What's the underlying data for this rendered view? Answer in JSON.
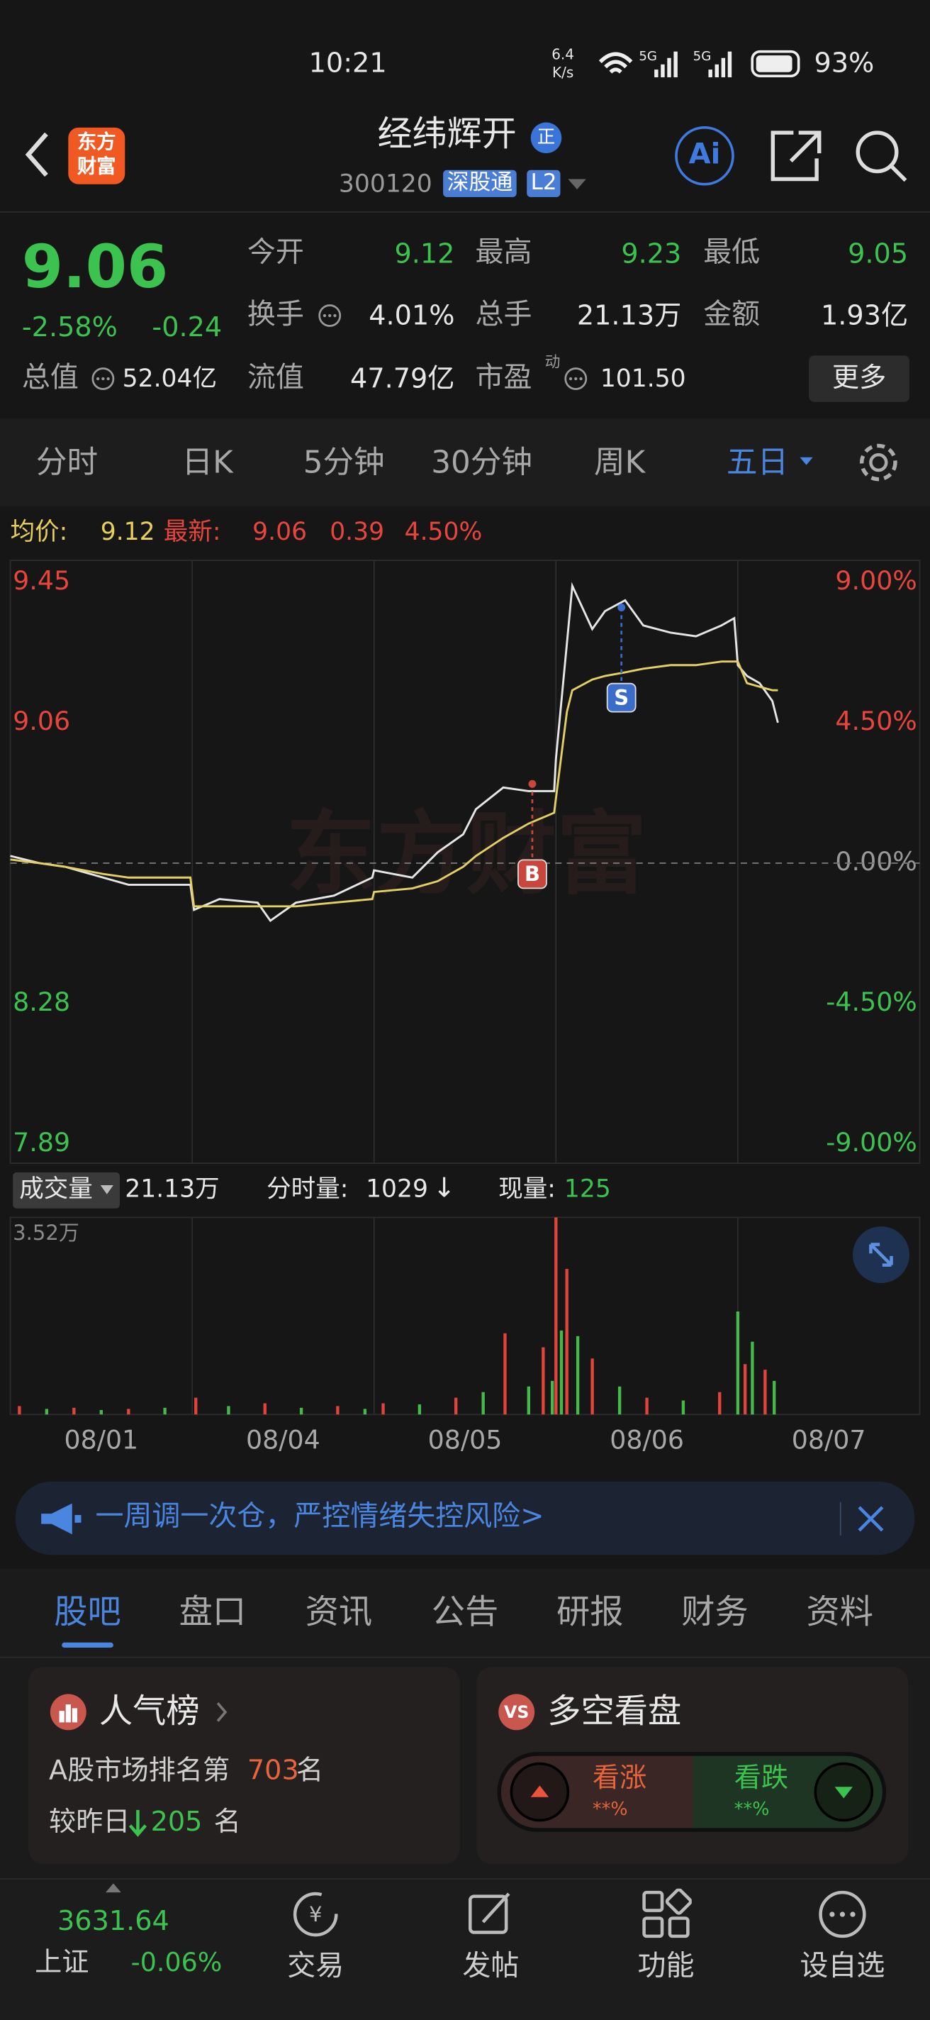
{
  "status": {
    "time": "10:21",
    "speed": "6.4",
    "speed_unit": "K/s",
    "battery": "93%"
  },
  "header": {
    "logo": [
      "东方",
      "财富"
    ],
    "title": "经纬辉开",
    "badge": "正",
    "code": "300120",
    "tags": [
      "深股通",
      "L2"
    ],
    "ai": "Ai"
  },
  "quote": {
    "price": "9.06",
    "change_pct": "-2.58%",
    "change": "-0.24",
    "fields": [
      {
        "label": "今开",
        "value": "9.12"
      },
      {
        "label": "最高",
        "value": "9.23"
      },
      {
        "label": "最低",
        "value": "9.05"
      },
      {
        "label": "换手",
        "value": "4.01%"
      },
      {
        "label": "总手",
        "value": "21.13万"
      },
      {
        "label": "金额",
        "value": "1.93亿"
      },
      {
        "label": "总值",
        "value": "52.04亿"
      },
      {
        "label": "流值",
        "value": "47.79亿"
      },
      {
        "label": "市盈",
        "value": "101.50",
        "sup": "动"
      }
    ],
    "more": "更多"
  },
  "tabs": [
    "分时",
    "日K",
    "5分钟",
    "30分钟",
    "周K",
    "五日"
  ],
  "chart_info": {
    "avg_label": "均价:",
    "avg": "9.12",
    "last_label": "最新:",
    "last": "9.06",
    "change": "0.39",
    "change_pct": "4.50%"
  },
  "chart_data": {
    "type": "line",
    "watermark": "东方财富",
    "xlim": [
      0,
      5
    ],
    "xticks": [
      {
        "value": 0.5,
        "label": "08/01"
      },
      {
        "value": 1.5,
        "label": "08/04"
      },
      {
        "value": 2.5,
        "label": "08/05"
      },
      {
        "value": 3.5,
        "label": "08/06"
      },
      {
        "value": 4.5,
        "label": "08/07"
      }
    ],
    "ylim": [
      7.89,
      9.45
    ],
    "yticks": [
      9.45,
      9.06,
      8.28,
      7.89
    ],
    "y2lim": [
      -9,
      9
    ],
    "y2ticks": [
      {
        "value": 9,
        "label": "9.00%"
      },
      {
        "value": 4.5,
        "label": "4.50%"
      },
      {
        "value": 0,
        "label": "0.00%"
      },
      {
        "value": -4.5,
        "label": "-4.50%"
      },
      {
        "value": -9,
        "label": "-9.00%"
      }
    ],
    "x": [
      0,
      0.16,
      0.3,
      0.51,
      0.65,
      0.99,
      1.01,
      1.15,
      1.36,
      1.43,
      1.57,
      1.78,
      1.99,
      2.0,
      2.21,
      2.35,
      2.49,
      2.56,
      2.71,
      2.85,
      2.99,
      3.0,
      3.06,
      3.09,
      3.2,
      3.27,
      3.38,
      3.48,
      3.63,
      3.77,
      3.91,
      3.98,
      4.0,
      4.05,
      4.12,
      4.19,
      4.22
    ],
    "series": [
      {
        "color": "#e6e6e6",
        "values": [
          8.69,
          8.67,
          8.66,
          8.63,
          8.61,
          8.61,
          8.54,
          8.57,
          8.56,
          8.51,
          8.56,
          8.58,
          8.63,
          8.65,
          8.63,
          8.7,
          8.75,
          8.82,
          8.88,
          8.87,
          8.87,
          8.96,
          9.28,
          9.44,
          9.32,
          9.37,
          9.4,
          9.33,
          9.31,
          9.3,
          9.33,
          9.35,
          9.22,
          9.19,
          9.17,
          9.12,
          9.06
        ]
      },
      {
        "color": "#e3cf63",
        "values": [
          8.68,
          8.67,
          8.66,
          8.64,
          8.63,
          8.63,
          8.55,
          8.55,
          8.55,
          8.55,
          8.55,
          8.56,
          8.57,
          8.59,
          8.6,
          8.62,
          8.66,
          8.69,
          8.74,
          8.78,
          8.81,
          8.85,
          9.09,
          9.15,
          9.18,
          9.19,
          9.2,
          9.21,
          9.22,
          9.22,
          9.23,
          9.23,
          9.23,
          9.17,
          9.16,
          9.15,
          9.15
        ]
      }
    ],
    "trades": [
      {
        "label": "B",
        "x": 2.87,
        "price": 8.89,
        "color": "#c8463b"
      },
      {
        "label": "S",
        "x": 3.36,
        "price": 9.38,
        "color": "#3a6cc9"
      }
    ],
    "volume": {
      "ylim": [
        0,
        3.52
      ],
      "yticks": [
        {
          "value": 3.52,
          "label": "3.52万"
        }
      ],
      "colors": [
        "#e0443a",
        "#45b94a"
      ],
      "x": [
        0.05,
        0.2,
        0.35,
        0.5,
        0.65,
        0.85,
        1.02,
        1.2,
        1.4,
        1.6,
        1.8,
        1.95,
        2.05,
        2.25,
        2.45,
        2.6,
        2.72,
        2.85,
        2.93,
        2.98,
        3.0,
        3.03,
        3.06,
        3.12,
        3.2,
        3.35,
        3.5,
        3.7,
        3.9,
        4.0,
        4.04,
        4.08,
        4.15,
        4.2
      ],
      "values": [
        0.15,
        0.1,
        0.12,
        0.08,
        0.1,
        0.12,
        0.3,
        0.15,
        0.2,
        0.12,
        0.15,
        0.1,
        0.2,
        0.18,
        0.3,
        0.4,
        1.45,
        0.5,
        1.2,
        0.6,
        3.52,
        1.5,
        2.6,
        1.4,
        1.0,
        0.5,
        0.3,
        0.25,
        0.4,
        1.84,
        0.9,
        1.3,
        0.8,
        0.6
      ]
    }
  },
  "volume_info": {
    "label": "成交量",
    "total": "21.13万",
    "tick_label": "分时量:",
    "tick": "1029",
    "arrow": "↓",
    "now_label": "现量:",
    "now": "125"
  },
  "banner": "一周调一次仓，严控情绪失控风险>",
  "section_tabs": [
    "股吧",
    "盘口",
    "资讯",
    "公告",
    "研报",
    "财务",
    "资料"
  ],
  "popularity": {
    "title": "人气榜",
    "rank_prefix": "A股市场排名第",
    "rank": "703",
    "rank_suffix": "名",
    "cmp_prefix": "较昨日",
    "cmp": "205",
    "cmp_suffix": "名"
  },
  "sentiment": {
    "title": "多空看盘",
    "up": "看涨",
    "up_value": "**%",
    "down": "看跌",
    "down_value": "**%"
  },
  "bottom_nav": {
    "index_value": "3631.64",
    "index_name": "上证",
    "index_change": "-0.06%",
    "items": [
      "交易",
      "发帖",
      "功能",
      "设自选"
    ]
  }
}
